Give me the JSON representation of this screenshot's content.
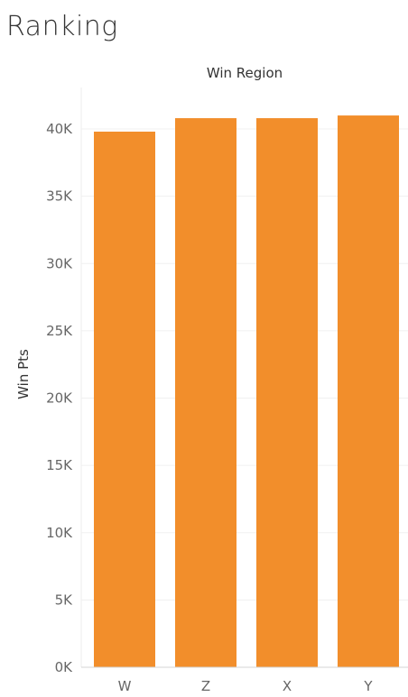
{
  "page": {
    "title": "Ranking"
  },
  "chart_data": {
    "type": "bar",
    "categories": [
      "W",
      "Z",
      "X",
      "Y"
    ],
    "values": [
      39800,
      40800,
      40800,
      41000
    ],
    "column_header": "Win Region",
    "ylabel": "Win Pts",
    "ylim": [
      0,
      42000
    ],
    "yticks": [
      0,
      5000,
      10000,
      15000,
      20000,
      25000,
      30000,
      35000,
      40000
    ],
    "ytick_labels": [
      "0K",
      "5K",
      "10K",
      "15K",
      "20K",
      "25K",
      "30K",
      "35K",
      "40K"
    ],
    "bar_color": "#f28e2b",
    "grid": true
  }
}
